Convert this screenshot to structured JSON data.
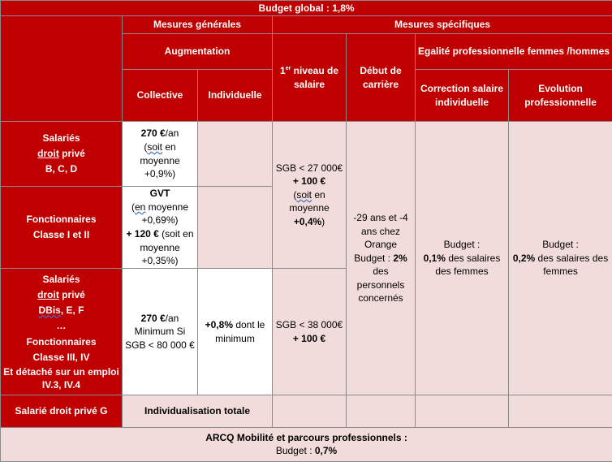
{
  "header": {
    "budget_global": "Budget global : 1,8%",
    "mesures_generales": "Mesures générales",
    "mesures_specifiques": "Mesures spécifiques",
    "augmentation": "Augmentation",
    "niveau_pre": "1",
    "niveau_sup": "er",
    "niveau_post": " niveau de salaire",
    "debut_carriere": "Début de carrière",
    "egalite": "Egalité professionnelle femmes /hommes",
    "collective": "Collective",
    "individuelle": "Individuelle",
    "correction": "Correction salaire individuelle",
    "evolution": "Evolution professionnelle"
  },
  "rows": {
    "r1": {
      "label_1": "Salariés",
      "label_2": "droit",
      "label_3": " privé",
      "label_4": "B, C, D",
      "coll_1": "270 €",
      "coll_2": "/an",
      "coll_3": "(",
      "coll_4": "soit",
      "coll_5": " en moyenne +0,9%)"
    },
    "r2": {
      "label_1": "Fonctionnaires",
      "label_2": "Classe I et II",
      "coll_1": "GVT",
      "coll_2": "(",
      "coll_3": "en",
      "coll_4": " moyenne +0,69%)",
      "coll_5": "+ 120 €",
      "coll_6": " (soit en moyenne +0,35%)"
    },
    "r3": {
      "label_1": "Salariés",
      "label_2": "droit",
      "label_3": " privé",
      "label_4": "DBis",
      "label_5": ", E, F",
      "label_6": "…",
      "label_7": "Fonctionnaires",
      "label_8": "Classe III, IV",
      "label_9": "Et détaché sur un emploi IV.3, IV.4",
      "coll_1": "270 €",
      "coll_2": "/an Minimum Si SGB < 80 000 €",
      "indiv_1": "+0,8%",
      "indiv_2": " dont le minimum"
    },
    "r4": {
      "label": "Salarié droit privé G",
      "coll": "Individualisation totale"
    },
    "niveau_a": {
      "t1": "SGB < 27 000€",
      "t2": "+ 100 €",
      "t3": "(",
      "t4": "soit",
      "t5": " en moyenne ",
      "t6": "+0,4%",
      "t7": ")"
    },
    "niveau_b": {
      "t1": "SGB < 38 000€",
      "t2": "+ 100 €"
    },
    "debut": {
      "t1": "-29 ans et -4 ans chez Orange Budget : ",
      "t2": "2%",
      "t3": " des personnels concernés"
    },
    "correction": {
      "t1": "Budget : ",
      "t2": "0,1%",
      "t3": " des salaires des femmes"
    },
    "evolution": {
      "t1": "Budget : ",
      "t2": "0,2%",
      "t3": " des salaires des femmes"
    }
  },
  "footer": {
    "line1": "ARCQ Mobilité et parcours professionnels :",
    "budget_label": "Budget : ",
    "budget_value": "0,7%"
  }
}
